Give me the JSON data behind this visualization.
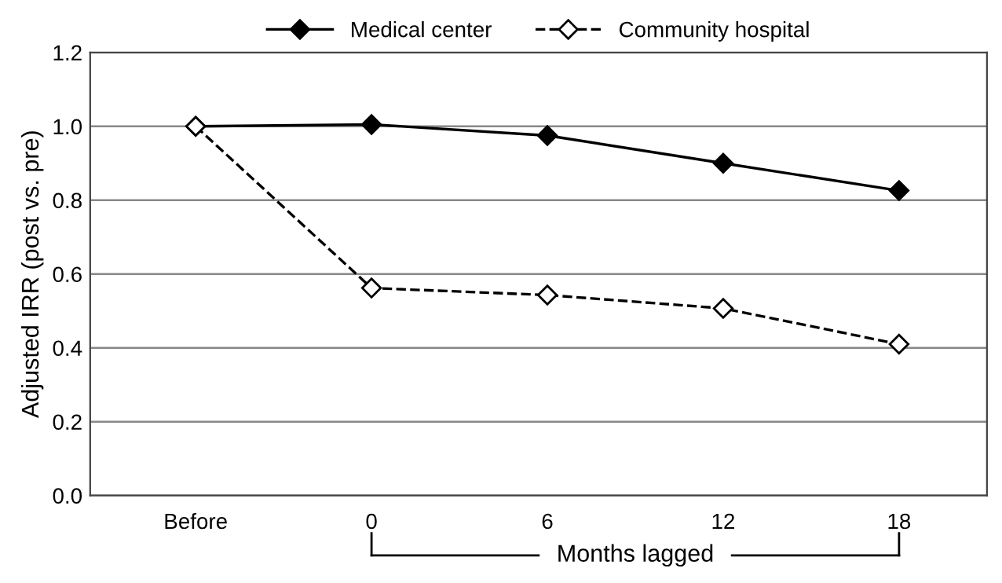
{
  "chart_data": {
    "type": "line",
    "ylabel": "Adjusted IRR (post vs. pre)",
    "xlabel": "Months lagged",
    "categories": [
      "Before",
      "0",
      "6",
      "12",
      "18"
    ],
    "series": [
      {
        "name": "Medical center",
        "color": "#000000",
        "values": [
          1.0,
          1.005,
          0.975,
          0.9,
          0.826
        ],
        "line_style": "solid"
      },
      {
        "name": "Community hospital",
        "color": "#000000",
        "values": [
          1.0,
          0.562,
          0.543,
          0.507,
          0.41
        ],
        "line_style": "dashed"
      }
    ],
    "ylim": [
      0,
      1.2
    ],
    "yticks": [
      {
        "value": 0,
        "label": "0.0"
      },
      {
        "value": 0.2,
        "label": "0.2"
      },
      {
        "value": 0.4,
        "label": "0.4"
      },
      {
        "value": 0.6,
        "label": "0.6"
      },
      {
        "value": 0.8,
        "label": "0.8"
      },
      {
        "value": 1.0,
        "label": "1.0"
      },
      {
        "value": 1.2,
        "label": "1.2"
      }
    ],
    "grid": "y",
    "legend": "top",
    "marker": "diamond"
  }
}
